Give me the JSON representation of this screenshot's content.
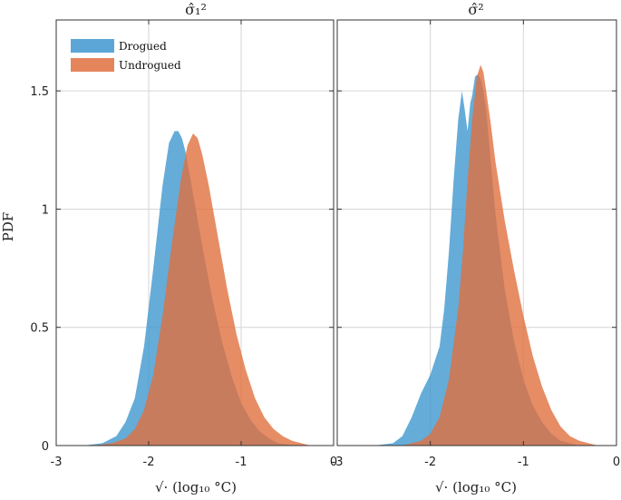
{
  "chart_data": {
    "type": "area",
    "ylabel": "PDF",
    "xlabel": "√· (log₁₀ °C)",
    "legend": {
      "placement": "top-left",
      "entries": [
        "Drogued",
        "Undrogued"
      ]
    },
    "colors": {
      "Drogued": "#3f97d0",
      "Undrogued": "#e0703f"
    },
    "opacity": 0.8,
    "grid": true,
    "xlim": [
      -3,
      0
    ],
    "ylim": [
      0,
      1.8
    ],
    "xticks": [
      {
        "v": -3,
        "label": "-3"
      },
      {
        "v": -2,
        "label": "-2"
      },
      {
        "v": -1,
        "label": "-1"
      },
      {
        "v": 0,
        "label": "0"
      }
    ],
    "yticks": [
      {
        "v": 0,
        "label": "0"
      },
      {
        "v": 0.5,
        "label": "0.5"
      },
      {
        "v": 1,
        "label": "1"
      },
      {
        "v": 1.5,
        "label": "1.5"
      }
    ],
    "panels": [
      {
        "title": "σ̂₁²",
        "series": [
          {
            "name": "Drogued",
            "x": [
              -3.0,
              -2.7,
              -2.5,
              -2.35,
              -2.25,
              -2.15,
              -2.05,
              -1.95,
              -1.85,
              -1.78,
              -1.72,
              -1.68,
              -1.64,
              -1.6,
              -1.5,
              -1.4,
              -1.3,
              -1.2,
              -1.1,
              -1.0,
              -0.9,
              -0.8,
              -0.7,
              -0.6,
              -0.5,
              -0.4,
              -0.3,
              -0.2
            ],
            "y": [
              0.0,
              0.0,
              0.01,
              0.04,
              0.1,
              0.2,
              0.42,
              0.75,
              1.1,
              1.28,
              1.33,
              1.33,
              1.3,
              1.24,
              1.02,
              0.8,
              0.6,
              0.43,
              0.29,
              0.18,
              0.11,
              0.06,
              0.03,
              0.01,
              0.005,
              0.0,
              0.0,
              0.0
            ]
          },
          {
            "name": "Undrogued",
            "x": [
              -3.0,
              -2.6,
              -2.4,
              -2.25,
              -2.15,
              -2.05,
              -1.95,
              -1.85,
              -1.75,
              -1.65,
              -1.58,
              -1.52,
              -1.47,
              -1.42,
              -1.35,
              -1.25,
              -1.15,
              -1.05,
              -0.95,
              -0.85,
              -0.75,
              -0.65,
              -0.55,
              -0.45,
              -0.35,
              -0.25,
              -0.15
            ],
            "y": [
              0.0,
              0.0,
              0.01,
              0.03,
              0.07,
              0.15,
              0.3,
              0.55,
              0.85,
              1.13,
              1.27,
              1.32,
              1.3,
              1.23,
              1.1,
              0.88,
              0.66,
              0.47,
              0.32,
              0.2,
              0.12,
              0.07,
              0.04,
              0.02,
              0.01,
              0.0,
              0.0
            ]
          }
        ]
      },
      {
        "title": "σ̂²",
        "series": [
          {
            "name": "Drogued",
            "x": [
              -3.0,
              -2.6,
              -2.4,
              -2.3,
              -2.2,
              -2.1,
              -2.0,
              -1.9,
              -1.85,
              -1.8,
              -1.75,
              -1.7,
              -1.66,
              -1.63,
              -1.6,
              -1.57,
              -1.55,
              -1.52,
              -1.49,
              -1.46,
              -1.43,
              -1.4,
              -1.35,
              -1.3,
              -1.2,
              -1.1,
              -1.0,
              -0.9,
              -0.8,
              -0.7,
              -0.6,
              -0.5,
              -0.4,
              -0.3
            ],
            "y": [
              0.0,
              0.0,
              0.01,
              0.04,
              0.12,
              0.22,
              0.3,
              0.42,
              0.58,
              0.82,
              1.12,
              1.38,
              1.5,
              1.42,
              1.33,
              1.45,
              1.48,
              1.56,
              1.57,
              1.55,
              1.5,
              1.42,
              1.2,
              0.98,
              0.66,
              0.44,
              0.28,
              0.17,
              0.1,
              0.05,
              0.02,
              0.01,
              0.0,
              0.0
            ]
          },
          {
            "name": "Undrogued",
            "x": [
              -3.0,
              -2.3,
              -2.1,
              -2.0,
              -1.9,
              -1.8,
              -1.7,
              -1.65,
              -1.6,
              -1.55,
              -1.5,
              -1.46,
              -1.43,
              -1.4,
              -1.35,
              -1.3,
              -1.2,
              -1.1,
              -1.0,
              -0.9,
              -0.8,
              -0.7,
              -0.6,
              -0.5,
              -0.4,
              -0.3,
              -0.2,
              -0.1,
              0.0
            ],
            "y": [
              0.0,
              0.0,
              0.02,
              0.05,
              0.12,
              0.28,
              0.58,
              0.82,
              1.12,
              1.38,
              1.56,
              1.61,
              1.58,
              1.5,
              1.36,
              1.2,
              0.95,
              0.74,
              0.55,
              0.38,
              0.25,
              0.15,
              0.08,
              0.04,
              0.02,
              0.01,
              0.0,
              0.0,
              0.0
            ]
          }
        ]
      }
    ]
  }
}
